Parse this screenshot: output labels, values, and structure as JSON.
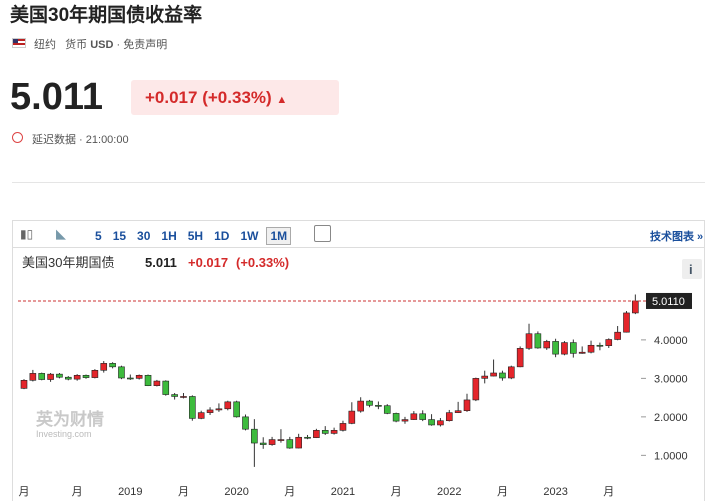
{
  "header": {
    "title": "美国30年期国债收益率",
    "location": "纽约",
    "currency_label": "货币",
    "currency": "USD",
    "disclaimer": "· 免责声明",
    "price": "5.011",
    "change": "+0.017",
    "change_pct": "(+0.33%)",
    "delay": "延迟数据 · 21:00:00"
  },
  "toolbar": {
    "intervals": [
      "5",
      "15",
      "30",
      "1H",
      "5H",
      "1D",
      "1W",
      "1M"
    ],
    "active": "1M",
    "link": "技术图表 »"
  },
  "watermark": {
    "brand": "英为财情",
    "site": "Investing.com"
  },
  "chart_data": {
    "type": "candlestick",
    "title": "美国30年期国债",
    "last_value": "5.011",
    "change": "+0.017",
    "change_pct": "(+0.33%)",
    "categories": [
      "月",
      null,
      null,
      null,
      null,
      null,
      "月",
      null,
      null,
      null,
      null,
      null,
      "2019",
      null,
      null,
      null,
      null,
      null,
      "月",
      null,
      null,
      null,
      null,
      null,
      "2020",
      null,
      null,
      null,
      null,
      null,
      "月",
      null,
      null,
      null,
      null,
      null,
      "2021",
      null,
      null,
      null,
      null,
      null,
      "月",
      null,
      null,
      null,
      null,
      null,
      "2022",
      null,
      null,
      null,
      null,
      null,
      "月",
      null,
      null,
      null,
      null,
      null,
      "2023",
      null,
      null,
      null,
      null,
      null,
      "月",
      null,
      null,
      null
    ],
    "open": [
      2.74,
      2.95,
      3.13,
      2.97,
      3.11,
      3.03,
      2.98,
      3.08,
      3.02,
      3.21,
      3.39,
      3.3,
      3.01,
      3.0,
      3.08,
      2.81,
      2.93,
      2.58,
      2.53,
      2.53,
      1.96,
      2.11,
      2.18,
      2.21,
      2.39,
      2.0,
      1.68,
      1.32,
      1.28,
      1.41,
      1.41,
      1.19,
      1.47,
      1.46,
      1.65,
      1.57,
      1.65,
      1.83,
      2.15,
      2.41,
      2.3,
      2.29,
      2.09,
      1.89,
      1.93,
      2.08,
      1.93,
      1.79,
      1.9,
      2.11,
      2.16,
      2.44,
      3.0,
      3.06,
      3.14,
      3.01,
      3.3,
      3.78,
      4.16,
      3.79,
      3.96,
      3.63,
      3.93,
      3.65,
      3.68,
      3.86,
      3.85,
      4.01,
      4.2,
      4.7
    ],
    "high": [
      2.98,
      3.22,
      3.15,
      3.14,
      3.14,
      3.06,
      3.11,
      3.1,
      3.24,
      3.45,
      3.42,
      3.33,
      3.1,
      3.1,
      3.1,
      2.96,
      2.95,
      2.62,
      2.62,
      2.56,
      2.16,
      2.25,
      2.35,
      2.42,
      2.42,
      2.06,
      1.94,
      1.47,
      1.48,
      1.68,
      1.48,
      1.56,
      1.53,
      1.69,
      1.76,
      1.72,
      1.9,
      2.38,
      2.51,
      2.44,
      2.4,
      2.33,
      2.11,
      2.0,
      2.15,
      2.17,
      2.07,
      1.97,
      2.18,
      2.39,
      2.6,
      3.02,
      3.2,
      3.49,
      3.2,
      3.33,
      3.83,
      4.42,
      4.22,
      4.0,
      4.03,
      3.97,
      4.01,
      3.83,
      3.98,
      3.93,
      4.04,
      4.36,
      4.75,
      5.18
    ],
    "low": [
      2.72,
      2.92,
      2.95,
      2.91,
      3.0,
      2.95,
      2.94,
      2.99,
      3.0,
      3.15,
      3.26,
      2.98,
      2.96,
      2.97,
      2.8,
      2.79,
      2.55,
      2.45,
      2.48,
      1.9,
      1.94,
      2.05,
      2.13,
      2.17,
      1.98,
      1.65,
      0.7,
      1.17,
      1.25,
      1.33,
      1.17,
      1.18,
      1.42,
      1.45,
      1.53,
      1.54,
      1.62,
      1.81,
      2.11,
      2.25,
      2.2,
      2.07,
      1.86,
      1.82,
      1.92,
      1.89,
      1.77,
      1.75,
      1.88,
      2.1,
      2.13,
      2.41,
      2.87,
      3.05,
      2.94,
      2.98,
      3.29,
      3.74,
      3.77,
      3.74,
      3.55,
      3.6,
      3.54,
      3.64,
      3.65,
      3.73,
      3.79,
      3.99,
      4.19,
      4.67
    ],
    "close": [
      2.95,
      3.13,
      2.97,
      3.11,
      3.03,
      2.98,
      3.08,
      3.02,
      3.21,
      3.39,
      3.3,
      3.01,
      3.0,
      3.08,
      2.81,
      2.93,
      2.58,
      2.53,
      2.53,
      1.96,
      2.11,
      2.18,
      2.21,
      2.39,
      2.0,
      1.68,
      1.32,
      1.28,
      1.41,
      1.41,
      1.19,
      1.47,
      1.46,
      1.65,
      1.57,
      1.65,
      1.83,
      2.15,
      2.41,
      2.3,
      2.29,
      2.09,
      1.89,
      1.93,
      2.08,
      1.93,
      1.79,
      1.9,
      2.11,
      2.16,
      2.44,
      3.0,
      3.06,
      3.14,
      3.01,
      3.3,
      3.78,
      4.16,
      3.79,
      3.96,
      3.63,
      3.93,
      3.65,
      3.68,
      3.86,
      3.85,
      4.01,
      4.2,
      4.7,
      5.011
    ],
    "up_color": "#e4252b",
    "down_color": "#3dbb3d",
    "ylim": [
      0.1,
      5.4
    ],
    "yticks": [
      {
        "value": 1,
        "label": "1.0000"
      },
      {
        "value": 2,
        "label": "2.0000"
      },
      {
        "value": 3,
        "label": "3.0000"
      },
      {
        "value": 4,
        "label": "4.0000"
      }
    ],
    "last_price": {
      "value": 5.011,
      "label": "5.0110"
    }
  }
}
